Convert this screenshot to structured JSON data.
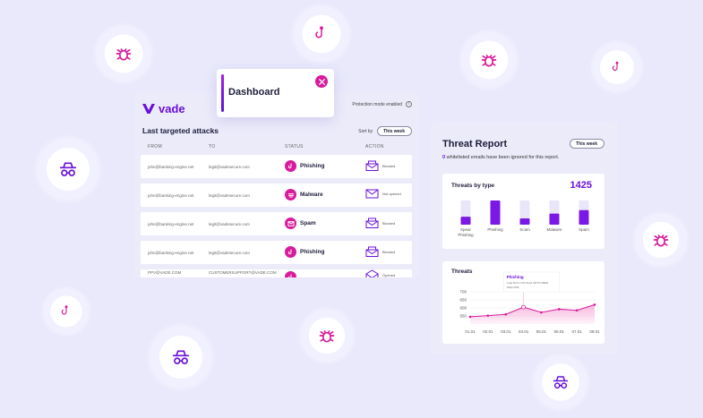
{
  "brand": {
    "name": "vade"
  },
  "header": {
    "protection_label": "Protection mode enabled",
    "info_icon": "info-icon"
  },
  "dashboard_tooltip": {
    "title": "Dashboard",
    "close_icon": "close-icon"
  },
  "attacks": {
    "title": "Last targeted attacks",
    "sort_label": "Sort by",
    "sort_value": "This week",
    "columns": [
      "FROM",
      "TO",
      "STATUS",
      "ACTION"
    ],
    "rows": [
      {
        "from": "john@banking-engine.net",
        "to": "legit@vadesecure.com",
        "status": "Phishing",
        "status_icon": "hook-icon",
        "action": "Blocked",
        "action_icon": "envelope-blocked-icon"
      },
      {
        "from": "john@banking-engine.net",
        "to": "legit@vadesecure.com",
        "status": "Malware",
        "status_icon": "malware-icon",
        "action": "Not opened",
        "action_icon": "envelope-icon"
      },
      {
        "from": "john@banking-engine.net",
        "to": "legit@vadesecure.com",
        "status": "Spam",
        "status_icon": "spam-icon",
        "action": "Blocked",
        "action_icon": "envelope-blocked-icon"
      },
      {
        "from": "john@banking-engine.net",
        "to": "legit@vadesecure.com",
        "status": "Phishing",
        "status_icon": "hook-icon",
        "action": "Blocked",
        "action_icon": "envelope-blocked-icon"
      },
      {
        "from": "PPV@VADE.COM",
        "to": "CUSTOMERSUPPORT@VADE.COM",
        "status": "",
        "status_icon": "hook-icon",
        "action": "Opened",
        "action_icon": "envelope-open-icon"
      }
    ]
  },
  "report": {
    "title": "Threat Report",
    "period": "This week",
    "whitelist_count": "0",
    "whitelist_text": "whitelisted emails have been ignored for this report."
  },
  "chart_data": [
    {
      "type": "bar",
      "title": "Threats by type",
      "total": "1425",
      "categories": [
        "Spear Phishing",
        "Phishing",
        "Scam",
        "Malware",
        "Spam"
      ],
      "values": [
        0.33,
        1.0,
        0.26,
        0.46,
        0.6
      ]
    },
    {
      "type": "area",
      "title": "Threats",
      "x": [
        "01.01",
        "02.01",
        "03.01",
        "04.01",
        "05.01",
        "06.01",
        "07.01",
        "08.01"
      ],
      "y_ticks": [
        "700",
        "650",
        "600",
        "550"
      ],
      "ylim": [
        500,
        750
      ],
      "values": [
        545,
        552,
        560,
        605,
        572,
        592,
        585,
        620
      ],
      "annotation": {
        "title": "Phishing",
        "line1": "Leak 5074 CSS Stats 53/75 CBEM",
        "line2": "Tablet 868"
      }
    }
  ],
  "colors": {
    "accent": "#6a11d9",
    "magenta": "#d81a9b",
    "background": "#e9e9fb"
  }
}
